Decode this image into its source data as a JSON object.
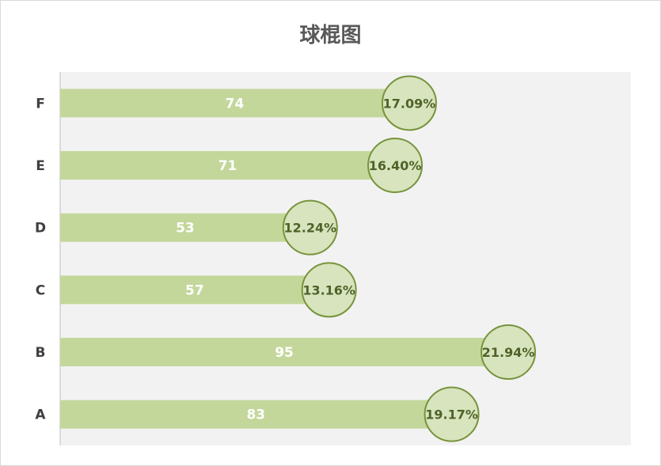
{
  "chart_data": {
    "type": "bar",
    "orientation": "horizontal",
    "title": "球棍图",
    "categories": [
      "A",
      "B",
      "C",
      "D",
      "E",
      "F"
    ],
    "values": [
      83,
      95,
      57,
      53,
      71,
      74
    ],
    "percent_labels": [
      "19.17%",
      "21.94%",
      "13.16%",
      "12.24%",
      "16.40%",
      "17.09%"
    ],
    "xlim": [
      0,
      121
    ],
    "grid": false,
    "legend": "none",
    "colors": {
      "bar": "#c4d79b",
      "bubble_fill": "#d7e4bd",
      "bubble_stroke": "#77933c",
      "plot_background": "#f2f2f2",
      "value_text": "#ffffff",
      "percent_text": "#4f6228",
      "category_text": "#404040"
    }
  }
}
